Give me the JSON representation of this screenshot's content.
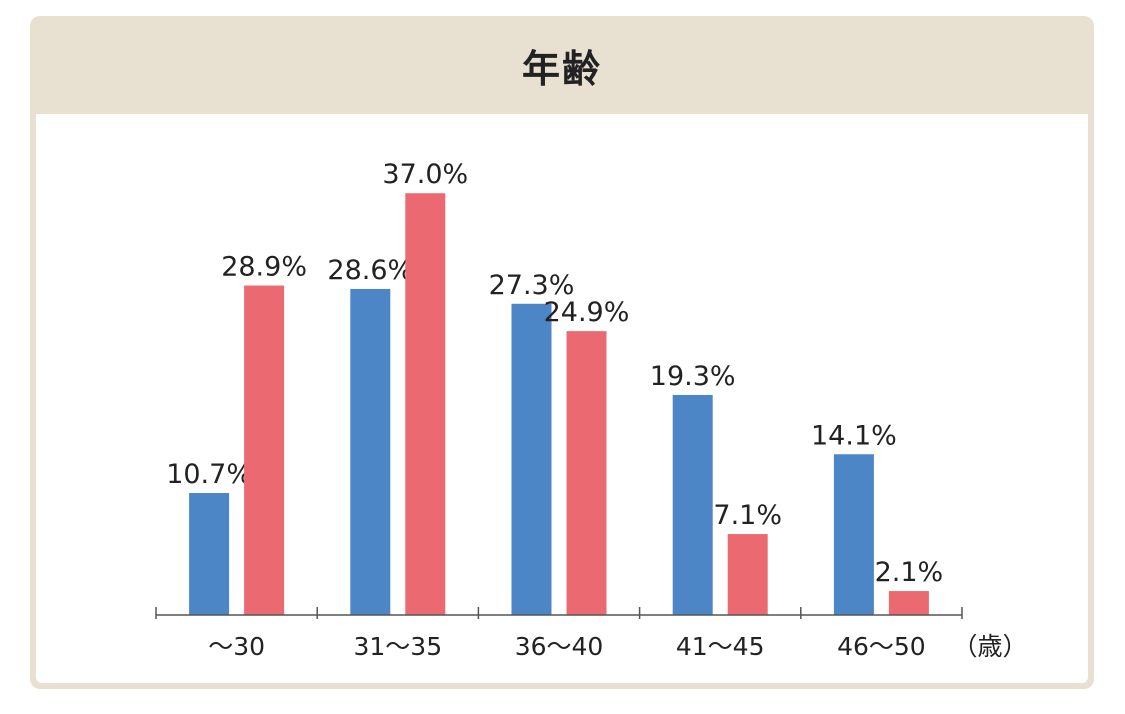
{
  "header": {
    "title": "年齢"
  },
  "chart_data": {
    "type": "bar",
    "categories": [
      "～30",
      "31～35",
      "36～40",
      "41～45",
      "46～50"
    ],
    "series": [
      {
        "color": "#4d86c6",
        "values": [
          10.7,
          28.6,
          27.3,
          19.3,
          14.1
        ],
        "labels": [
          "10.7%",
          "28.6%",
          "27.3%",
          "19.3%",
          "14.1%"
        ]
      },
      {
        "color": "#eb6a72",
        "values": [
          28.9,
          37.0,
          24.9,
          7.1,
          2.1
        ],
        "labels": [
          "28.9%",
          "37.0%",
          "24.9%",
          "7.1%",
          "2.1%"
        ]
      }
    ],
    "xlabel": "（歳）",
    "ylim": [
      0,
      40
    ]
  }
}
